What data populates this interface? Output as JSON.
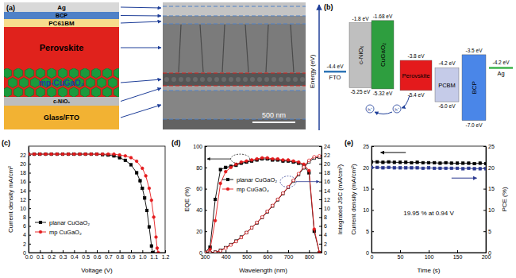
{
  "diagrams": {
    "a": {
      "label": "(a)",
      "layers": [
        "Ag",
        "BCP",
        "PC61BM",
        "Perovskite",
        "mp-CuGaO₂",
        "c-NiOₓ",
        "Glass/FTO"
      ],
      "scale_bar": "500 nm"
    },
    "b": {
      "label": "(b)",
      "axis_label": "Energy (eV)",
      "hole_label": "h⁺",
      "levels": [
        {
          "name": "FTO",
          "energy": {
            "value": -4.4,
            "label": "-4.4 eV"
          }
        },
        {
          "name": "c-NiOₓ",
          "top": {
            "value": -1.8,
            "label": "-1.8 eV"
          },
          "bottom": {
            "value": -5.25,
            "label": "-5.25 eV"
          }
        },
        {
          "name": "CuGaO₂",
          "top": {
            "value": -1.68,
            "label": "-1.68 eV"
          },
          "bottom": {
            "value": -5.32,
            "label": "-5.32 eV"
          }
        },
        {
          "name": "Perovskite",
          "top": {
            "value": -3.8,
            "label": "-3.8 eV"
          },
          "bottom": {
            "value": -5.4,
            "label": "-5.4 eV"
          }
        },
        {
          "name": "PCBM",
          "top": {
            "value": -4.2,
            "label": "-4.2 eV"
          },
          "bottom": {
            "value": -6.0,
            "label": "-6.0 eV"
          }
        },
        {
          "name": "BCP",
          "top": {
            "value": -3.5,
            "label": "-3.5 eV"
          },
          "bottom": {
            "value": -7.0,
            "label": "-7.0 eV"
          }
        },
        {
          "name": "Ag",
          "energy": {
            "value": -4.2,
            "label": "-4.2 eV"
          }
        }
      ]
    }
  },
  "chart_data": [
    {
      "type": "line",
      "title": "(c)",
      "x_label": "Voltage (V)",
      "y_label": "Current density mA/cm²",
      "xlim": [
        0,
        1.2
      ],
      "xticks": [
        {
          "value": 0,
          "label": "0.0"
        },
        {
          "value": 0.1,
          "label": "0.1"
        },
        {
          "value": 0.2,
          "label": "0.2"
        },
        {
          "value": 0.3,
          "label": "0.3"
        },
        {
          "value": 0.4,
          "label": "0.4"
        },
        {
          "value": 0.5,
          "label": "0.5"
        },
        {
          "value": 0.6,
          "label": "0.6"
        },
        {
          "value": 0.7,
          "label": "0.7"
        },
        {
          "value": 0.8,
          "label": "0.8"
        },
        {
          "value": 0.9,
          "label": "0.9"
        },
        {
          "value": 1.0,
          "label": "1.0"
        },
        {
          "value": 1.1,
          "label": "1.1"
        },
        {
          "value": 1.2,
          "label": "1.2"
        }
      ],
      "ylim": [
        0,
        24
      ],
      "yticks": [
        0,
        2,
        4,
        6,
        8,
        10,
        12,
        14,
        16,
        18,
        20,
        22
      ],
      "legend": "lower-left",
      "series": [
        {
          "name": "planar CuGaO₂",
          "color": "#000000",
          "marker": "square",
          "line_style": "solid",
          "x": [
            0,
            0.05,
            0.1,
            0.15,
            0.2,
            0.25,
            0.3,
            0.35,
            0.4,
            0.45,
            0.5,
            0.55,
            0.6,
            0.65,
            0.7,
            0.75,
            0.8,
            0.85,
            0.9,
            0.95,
            0.98,
            1.0,
            1.02,
            1.04,
            1.06,
            1.08,
            1.09
          ],
          "values": [
            22.2,
            22.2,
            22.2,
            22.2,
            22.2,
            22.2,
            22.2,
            22.2,
            22.2,
            22.2,
            22.2,
            22.2,
            22.2,
            22.1,
            22.0,
            21.8,
            21.4,
            20.8,
            19.8,
            18.0,
            16.2,
            14.5,
            12.3,
            9.5,
            5.8,
            1.5,
            0
          ]
        },
        {
          "name": "mp CuGaO₂",
          "color": "#e41a1c",
          "marker": "circle",
          "line_style": "solid",
          "x": [
            0,
            0.05,
            0.1,
            0.15,
            0.2,
            0.25,
            0.3,
            0.35,
            0.4,
            0.45,
            0.5,
            0.55,
            0.6,
            0.65,
            0.7,
            0.75,
            0.8,
            0.85,
            0.9,
            0.95,
            1.0,
            1.03,
            1.06,
            1.08,
            1.1,
            1.12,
            1.13,
            1.14
          ],
          "values": [
            22.2,
            22.2,
            22.2,
            22.2,
            22.2,
            22.2,
            22.2,
            22.2,
            22.2,
            22.2,
            22.2,
            22.2,
            22.2,
            22.2,
            22.2,
            22.2,
            22.0,
            21.8,
            21.4,
            20.6,
            19.0,
            17.3,
            14.5,
            11.8,
            8.0,
            3.5,
            1.0,
            0
          ]
        }
      ]
    },
    {
      "type": "line",
      "title": "(d)",
      "x_label": "Wavelength (nm)",
      "y_label": "EQE (%)",
      "y2_label": "Integrated JSC (mA/cm²)",
      "xlim": [
        300,
        860
      ],
      "xticks": [
        300,
        400,
        500,
        600,
        700,
        800
      ],
      "ylim": [
        0,
        100
      ],
      "yticks": [
        0,
        20,
        40,
        60,
        80,
        100
      ],
      "y2lim": [
        0,
        24
      ],
      "y2ticks": [
        0,
        2,
        4,
        6,
        8,
        10,
        12,
        14,
        16,
        18,
        20,
        22,
        24
      ],
      "legend": "left",
      "x": [
        300,
        325,
        350,
        375,
        400,
        425,
        450,
        475,
        500,
        525,
        550,
        575,
        600,
        625,
        650,
        675,
        700,
        725,
        750,
        775,
        800,
        825,
        850
      ],
      "series": [
        {
          "name": "planar CuGaO₂",
          "color": "#000000",
          "marker": "square",
          "line_style": "solid",
          "values": [
            0,
            5,
            50,
            78,
            80,
            81,
            82,
            84,
            85,
            86,
            87,
            88,
            88,
            87,
            87,
            86,
            86,
            85,
            84,
            82,
            75,
            20,
            0
          ]
        },
        {
          "name": "mp CuGaO₂",
          "color": "#e41a1c",
          "marker": "circle",
          "line_style": "solid",
          "values": [
            0,
            3,
            30,
            65,
            76,
            80,
            83,
            85,
            86,
            87,
            88,
            89,
            89,
            88,
            88,
            87,
            87,
            86,
            85,
            83,
            77,
            22,
            0
          ]
        },
        {
          "color": "#000000",
          "marker": "open-square",
          "line_style": "solid",
          "axis": "y2",
          "values": [
            0,
            0,
            0.1,
            0.5,
            1.1,
            1.8,
            2.6,
            3.5,
            4.5,
            5.6,
            6.7,
            7.9,
            9.2,
            10.5,
            11.9,
            13.3,
            14.7,
            16.1,
            17.6,
            19.1,
            20.5,
            21.3,
            21.5
          ]
        },
        {
          "color": "#e41a1c",
          "marker": "open-circle",
          "line_style": "solid",
          "axis": "y2",
          "values": [
            0,
            0,
            0.05,
            0.4,
            1.0,
            1.7,
            2.5,
            3.4,
            4.5,
            5.6,
            6.8,
            8.0,
            9.3,
            10.6,
            12.0,
            13.4,
            14.8,
            16.3,
            17.8,
            19.3,
            20.8,
            21.6,
            21.8
          ]
        }
      ]
    },
    {
      "type": "line",
      "title": "(e)",
      "x_label": "Time (s)",
      "y_label": "Current density (mA/cm²)",
      "y2_label": "PCE (%)",
      "xlim": [
        0,
        200
      ],
      "xticks": [
        0,
        50,
        100,
        150,
        200
      ],
      "ylim": [
        0,
        25
      ],
      "yticks": [
        0,
        5,
        10,
        15,
        20,
        25
      ],
      "y2lim": [
        0,
        25
      ],
      "y2ticks": [
        0,
        5,
        10,
        15,
        20,
        25
      ],
      "annotations": [
        "19.95 % at 0.94 V"
      ],
      "x": [
        0,
        10,
        20,
        30,
        40,
        50,
        60,
        70,
        80,
        90,
        100,
        110,
        120,
        130,
        140,
        150,
        160,
        170,
        180,
        190,
        200
      ],
      "series": [
        {
          "color": "#000000",
          "marker": "square",
          "line_style": "solid",
          "values": [
            21.3,
            21.3,
            21.2,
            21.3,
            21.2,
            21.2,
            21.2,
            21.1,
            21.2,
            21.1,
            21.1,
            21.1,
            21.0,
            21.1,
            21.0,
            21.0,
            21.0,
            21.0,
            20.9,
            21.0,
            20.9
          ]
        },
        {
          "color": "#2b3990",
          "marker": "square",
          "line_style": "solid",
          "axis": "y2",
          "values": [
            20.0,
            20.0,
            19.9,
            20.0,
            19.9,
            19.9,
            19.9,
            19.9,
            19.9,
            19.8,
            19.9,
            19.8,
            19.8,
            19.8,
            19.8,
            19.8,
            19.7,
            19.8,
            19.7,
            19.7,
            19.7
          ]
        }
      ]
    }
  ]
}
